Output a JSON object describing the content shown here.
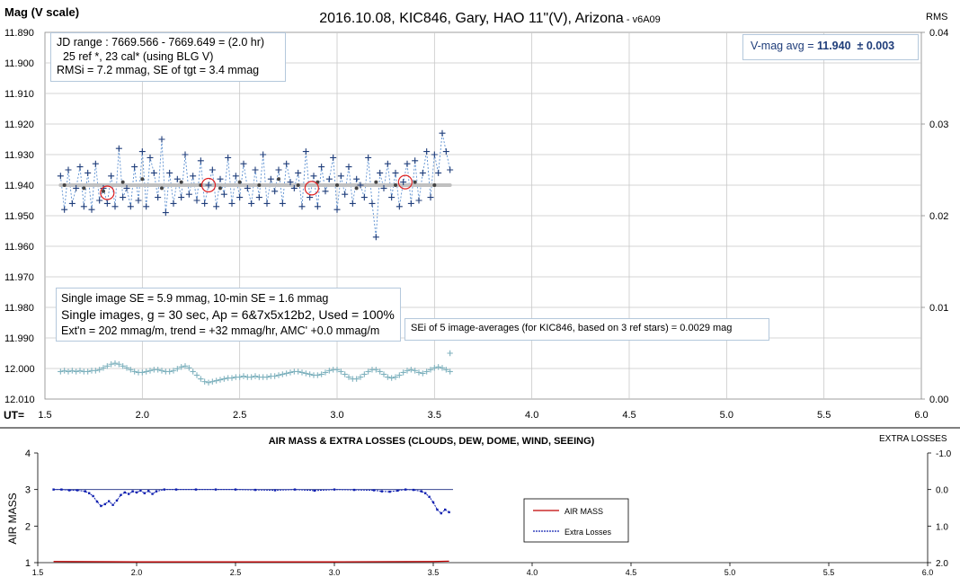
{
  "top_chart": {
    "title_main": "2016.10.08, KIC846, Gary, HAO 11\"(V), Arizona",
    "title_suffix": " - v6A09",
    "ylabel_left": "Mag (V scale)",
    "ylabel_right": "RMS",
    "x_axis_prefix": "UT=",
    "info_box_lines": [
      "JD range : 7669.566 - 7669.649 = (2.0 hr)",
      "  25 ref *, 23 cal* (using BLG V)",
      "RMSi = 7.2 mmag, SE of tgt = 3.4 mmag"
    ],
    "vmag_label": "V-mag avg = ",
    "vmag_value": "11.940",
    "vmag_err": "  ± 0.003",
    "se_box_lines": [
      "Single image SE = 5.9 mmag, 10-min SE = 1.6 mmag",
      "Single images, g = 30 sec, Ap = 6&7x5x12b2, Used = 100%",
      "Ext'n = 202 mmag/m, trend = +32 mmag/hr, AMC' +0.0 mmag/m"
    ],
    "sei_note": "SEi of 5 image-averages (for KIC846, based on 3 ref stars) = 0.0029 mag"
  },
  "bottom_chart": {
    "title": "AIR MASS & EXTRA LOSSES (CLOUDS, DEW, DOME, WIND, SEEING)",
    "ylabel_left": "AIR MASS",
    "ylabel_right": "EXTRA LOSSES",
    "legend": [
      "AIR MASS",
      "Extra Losses"
    ]
  },
  "colors": {
    "mag_points": "#1f3d7a",
    "mag_line": "#5b8fd0",
    "avg_points": "#444444",
    "avg_line": "#c0c0c0",
    "circles": "#e02020",
    "rms_points": "#7fb2be",
    "airmass_line": "#c00000",
    "extra_losses": "#1020b0",
    "vmag_text": "#1f3d7a"
  },
  "chart_data": [
    {
      "type": "scatter",
      "title": "2016.10.08, KIC846, Gary, HAO 11\"(V), Arizona - v6A09",
      "xlabel": "UT=",
      "ylabel": "Mag (V scale)",
      "y2label": "RMS",
      "xlim": [
        1.5,
        6.0
      ],
      "ylim": [
        12.01,
        11.89
      ],
      "y2lim": [
        0.0,
        0.04
      ],
      "x_ticks": [
        "1.5",
        "2.0",
        "2.5",
        "3.0",
        "3.5",
        "4.0",
        "4.5",
        "5.0",
        "5.5",
        "6.0"
      ],
      "y_ticks": [
        "11.890",
        "11.900",
        "11.910",
        "11.920",
        "11.930",
        "11.940",
        "11.950",
        "11.960",
        "11.970",
        "11.980",
        "11.990",
        "12.000",
        "12.010"
      ],
      "y2_ticks": [
        "0.04",
        "0.03",
        "0.02",
        "0.01",
        "0.00"
      ],
      "grid": true,
      "series": [
        {
          "marker": "plus",
          "x": [
            1.58,
            1.6,
            1.62,
            1.64,
            1.66,
            1.68,
            1.7,
            1.72,
            1.74,
            1.76,
            1.78,
            1.8,
            1.82,
            1.84,
            1.86,
            1.88,
            1.9,
            1.92,
            1.94,
            1.96,
            1.98,
            2.0,
            2.02,
            2.04,
            2.06,
            2.08,
            2.1,
            2.12,
            2.14,
            2.16,
            2.18,
            2.2,
            2.22,
            2.24,
            2.26,
            2.28,
            2.3,
            2.32,
            2.34,
            2.36,
            2.38,
            2.4,
            2.42,
            2.44,
            2.46,
            2.48,
            2.5,
            2.52,
            2.54,
            2.56,
            2.58,
            2.6,
            2.62,
            2.64,
            2.66,
            2.68,
            2.7,
            2.72,
            2.74,
            2.76,
            2.78,
            2.8,
            2.82,
            2.84,
            2.86,
            2.88,
            2.9,
            2.92,
            2.94,
            2.96,
            2.98,
            3.0,
            3.02,
            3.04,
            3.06,
            3.08,
            3.1,
            3.12,
            3.14,
            3.16,
            3.18,
            3.2,
            3.22,
            3.24,
            3.26,
            3.28,
            3.3,
            3.32,
            3.34,
            3.36,
            3.38,
            3.4,
            3.42,
            3.44,
            3.46,
            3.48,
            3.5,
            3.52,
            3.54,
            3.56,
            3.58
          ],
          "values": [
            11.937,
            11.948,
            11.935,
            11.946,
            11.941,
            11.934,
            11.947,
            11.936,
            11.948,
            11.933,
            11.945,
            11.941,
            11.946,
            11.937,
            11.947,
            11.928,
            11.944,
            11.941,
            11.947,
            11.934,
            11.945,
            11.929,
            11.947,
            11.931,
            11.936,
            11.944,
            11.925,
            11.949,
            11.936,
            11.946,
            11.938,
            11.944,
            11.93,
            11.943,
            11.937,
            11.945,
            11.932,
            11.946,
            11.94,
            11.935,
            11.947,
            11.938,
            11.943,
            11.931,
            11.946,
            11.937,
            11.944,
            11.933,
            11.941,
            11.946,
            11.935,
            11.944,
            11.93,
            11.946,
            11.938,
            11.942,
            11.935,
            11.946,
            11.933,
            11.939,
            11.941,
            11.936,
            11.947,
            11.929,
            11.944,
            11.937,
            11.947,
            11.934,
            11.942,
            11.938,
            11.931,
            11.948,
            11.937,
            11.943,
            11.934,
            11.946,
            11.938,
            11.94,
            11.944,
            11.931,
            11.946,
            11.957,
            11.936,
            11.941,
            11.933,
            11.944,
            11.936,
            11.947,
            11.939,
            11.933,
            11.946,
            11.932,
            11.945,
            11.936,
            11.929,
            11.944,
            11.93,
            11.936,
            11.923,
            11.929,
            11.935
          ]
        },
        {
          "name": "5-image averages",
          "marker": "dot",
          "x": [
            1.6,
            1.7,
            1.8,
            1.9,
            2.0,
            2.1,
            2.2,
            2.3,
            2.4,
            2.5,
            2.6,
            2.7,
            2.8,
            2.9,
            3.0,
            3.1,
            3.2,
            3.3,
            3.4,
            3.5
          ],
          "values": [
            11.94,
            11.941,
            11.942,
            11.939,
            11.938,
            11.941,
            11.939,
            11.94,
            11.941,
            11.939,
            11.94,
            11.938,
            11.94,
            11.939,
            11.94,
            11.941,
            11.939,
            11.94,
            11.939,
            11.94
          ]
        },
        {
          "name": "average",
          "type": "line",
          "x": [
            1.58,
            3.58
          ],
          "values": [
            11.94,
            11.94
          ]
        },
        {
          "name": "30-min averages",
          "marker": "circle",
          "x": [
            1.82,
            2.34,
            2.87,
            3.35
          ],
          "values": [
            11.9425,
            11.94,
            11.941,
            11.939
          ]
        },
        {
          "name": "RMS",
          "axis": "right",
          "marker": "plus",
          "x_range": [
            1.58,
            3.58
          ],
          "values": [
            0.003,
            0.0031,
            0.003,
            0.0031,
            0.003,
            0.0031,
            0.003,
            0.003,
            0.0031,
            0.0031,
            0.0032,
            0.0034,
            0.0036,
            0.0038,
            0.0039,
            0.0038,
            0.0036,
            0.0034,
            0.0032,
            0.003,
            0.0029,
            0.0029,
            0.003,
            0.0031,
            0.0032,
            0.0032,
            0.0031,
            0.003,
            0.003,
            0.0031,
            0.0033,
            0.0035,
            0.0036,
            0.0034,
            0.003,
            0.0026,
            0.0022,
            0.0019,
            0.0018,
            0.0019,
            0.002,
            0.0021,
            0.0022,
            0.0023,
            0.0023,
            0.0024,
            0.0024,
            0.0025,
            0.0024,
            0.0024,
            0.0025,
            0.0024,
            0.0024,
            0.0024,
            0.0025,
            0.0025,
            0.0026,
            0.0027,
            0.0028,
            0.0029,
            0.003,
            0.003,
            0.0029,
            0.0028,
            0.0027,
            0.0026,
            0.0026,
            0.0027,
            0.0029,
            0.0031,
            0.0032,
            0.0032,
            0.003,
            0.0027,
            0.0024,
            0.0022,
            0.0022,
            0.0024,
            0.0027,
            0.003,
            0.0032,
            0.0032,
            0.003,
            0.0027,
            0.0024,
            0.0023,
            0.0024,
            0.0026,
            0.0029,
            0.0031,
            0.0032,
            0.0031,
            0.0029,
            0.0028,
            0.003,
            0.0032,
            0.0034,
            0.0035,
            0.0034,
            0.0032,
            0.003
          ],
          "outlier": {
            "x": 3.58,
            "value": 0.005
          }
        }
      ]
    },
    {
      "type": "line",
      "title": "AIR MASS & EXTRA LOSSES (CLOUDS, DEW, DOME, WIND, SEEING)",
      "ylabel": "AIR MASS",
      "y2label": "EXTRA LOSSES",
      "xlim": [
        1.5,
        6.0
      ],
      "ylim": [
        1,
        4
      ],
      "y2lim": [
        -1.0,
        2.0
      ],
      "x_ticks": [
        "1.5",
        "2.0",
        "2.5",
        "3.0",
        "3.5",
        "4.0",
        "4.5",
        "5.0",
        "5.5",
        "6.0"
      ],
      "y_ticks": [
        "4",
        "3",
        "2",
        "1"
      ],
      "y2_ticks": [
        "-1.0",
        "0.0",
        "1.0",
        "2.0"
      ],
      "legend_position": "center-right",
      "series": [
        {
          "name": "AIR MASS",
          "x": [
            1.58,
            2.0,
            2.5,
            3.0,
            3.5,
            3.58
          ],
          "values": [
            1.03,
            1.02,
            1.02,
            1.02,
            1.03,
            1.04
          ]
        },
        {
          "name": "Extra Losses",
          "axis": "right",
          "x": [
            1.58,
            1.62,
            1.66,
            1.7,
            1.74,
            1.76,
            1.78,
            1.8,
            1.82,
            1.84,
            1.86,
            1.88,
            1.9,
            1.92,
            1.94,
            1.96,
            1.98,
            2.0,
            2.02,
            2.04,
            2.06,
            2.08,
            2.1,
            2.14,
            2.2,
            2.3,
            2.4,
            2.5,
            2.6,
            2.7,
            2.8,
            2.9,
            3.0,
            3.1,
            3.2,
            3.24,
            3.28,
            3.32,
            3.36,
            3.4,
            3.44,
            3.46,
            3.48,
            3.5,
            3.52,
            3.54,
            3.56,
            3.58
          ],
          "values": [
            0.0,
            0.0,
            0.02,
            0.02,
            0.05,
            0.1,
            0.18,
            0.33,
            0.45,
            0.4,
            0.32,
            0.42,
            0.3,
            0.15,
            0.08,
            0.12,
            0.05,
            0.08,
            0.03,
            0.1,
            0.04,
            0.12,
            0.05,
            0.0,
            0.0,
            0.0,
            0.0,
            0.0,
            0.01,
            0.02,
            0.0,
            0.03,
            0.0,
            0.01,
            0.02,
            0.05,
            0.06,
            0.03,
            0.0,
            0.01,
            0.05,
            0.1,
            0.2,
            0.35,
            0.55,
            0.65,
            0.55,
            0.62
          ]
        },
        {
          "name": "zero reference",
          "axis": "right",
          "x": [
            1.58,
            3.6
          ],
          "values": [
            0.0,
            0.0
          ]
        }
      ]
    }
  ]
}
